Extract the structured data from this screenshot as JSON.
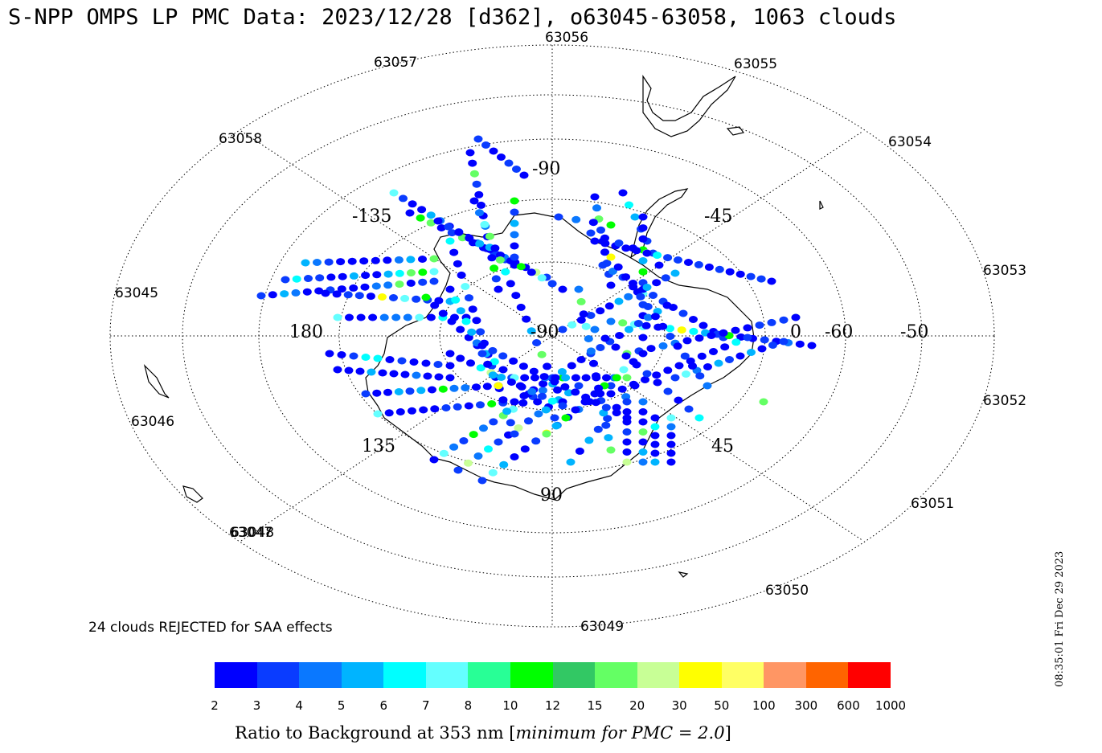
{
  "title": "S-NPP OMPS LP PMC Data: 2023/12/28 [d362], o63045-63058, 1063 clouds",
  "orbit_labels": [
    "63045",
    "63046",
    "63047",
    "63048",
    "63049",
    "63050",
    "63051",
    "63052",
    "63053",
    "63054",
    "63055",
    "63056",
    "63057",
    "63058"
  ],
  "coord_labels": {
    "top": "-90",
    "upper_left": "-135",
    "upper_right": "-45",
    "left": "180",
    "center": "-90",
    "right_0": "0",
    "right_60": "-60",
    "right_50": "-50",
    "lower_left": "135",
    "lower_right": "45",
    "bottom": "90"
  },
  "reject_note": "24 clouds REJECTED for SAA effects",
  "timestamp": "08:35:01 Fri Dec 29 2023",
  "colorbar": {
    "colors": [
      "#0000ff",
      "#0a3cff",
      "#0a78ff",
      "#00b4ff",
      "#00ffff",
      "#64ffff",
      "#28ff96",
      "#00ff00",
      "#32c864",
      "#64ff64",
      "#c8ff96",
      "#ffff00",
      "#ffff64",
      "#ff9664",
      "#ff6400",
      "#ff0000"
    ],
    "ticks": [
      "2",
      "3",
      "4",
      "5",
      "6",
      "7",
      "8",
      "10",
      "12",
      "15",
      "20",
      "30",
      "50",
      "100",
      "300",
      "600",
      "1000"
    ],
    "label_main": "Ratio to Background at 353 nm [",
    "label_italic": "minimum for PMC = 2.0",
    "label_end": "]"
  },
  "map": {
    "grid": "dotted polar rings and meridians",
    "projection": "south polar stereographic",
    "dot_palette_indices": [
      0,
      1,
      2,
      3,
      4,
      5,
      6,
      7,
      8,
      9,
      10,
      11
    ]
  }
}
